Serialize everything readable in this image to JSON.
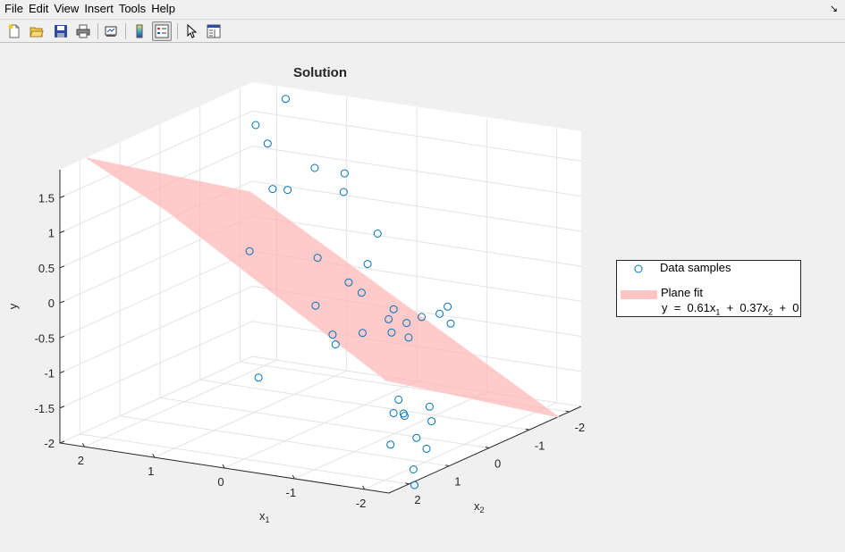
{
  "menu": [
    "File",
    "Edit",
    "View",
    "Insert",
    "Tools",
    "Help"
  ],
  "undock_glyph": "↘",
  "toolbar": {
    "icons": [
      "new-figure-icon",
      "open-file-icon",
      "save-icon",
      "print-icon",
      "link-plot-icon",
      "colorbar-icon",
      "legend-icon",
      "edit-plot-icon",
      "property-inspector-icon"
    ]
  },
  "colors": {
    "samples": "#0072bd",
    "plane": "#ffb3b3",
    "plane_edge": "#ffcccc"
  },
  "chart_data": {
    "type": "scatter",
    "title": "Solution",
    "xlabel": "x",
    "xlabel_sub": "1",
    "zlabel": "x",
    "zlabel_sub": "2",
    "ylabel": "y",
    "x_ticks": [
      "2",
      "1",
      "0",
      "-1",
      "-2"
    ],
    "z_ticks": [
      "-2",
      "-1",
      "0",
      "1",
      "2"
    ],
    "y_ticks": [
      "1.5",
      "1",
      "0.5",
      "0",
      "-0.5",
      "-1",
      "-1.5",
      "-2"
    ],
    "grid": true,
    "legend_position": "right",
    "legend": {
      "samples_label": "Data samples",
      "plane_label": "Plane  fit",
      "eq_prefix": "y  =  0.61x",
      "eq_sub1": "1",
      "eq_mid": "  +  0.37x",
      "eq_sub2": "2",
      "eq_suffix": "  +  0"
    },
    "plane": {
      "coef_x1": 0.61,
      "coef_x2": 0.37,
      "intercept": 0
    },
    "series": [
      {
        "name": "Data samples",
        "points": [
          {
            "x1": 1.9,
            "x2": -1.6,
            "y": 1.55
          },
          {
            "x1": 1.7,
            "x2": -2.0,
            "y": 1.85
          },
          {
            "x1": 1.5,
            "x2": -1.2,
            "y": 1.45
          },
          {
            "x1": 1.3,
            "x2": -0.4,
            "y": 0.15
          },
          {
            "x1": 1.2,
            "x2": -0.8,
            "y": 0.95
          },
          {
            "x1": 1.1,
            "x2": -1.0,
            "y": 0.9
          },
          {
            "x1": 1.0,
            "x2": -1.5,
            "y": 1.1
          },
          {
            "x1": 0.8,
            "x2": -1.9,
            "y": 0.95
          },
          {
            "x1": 0.7,
            "x2": -1.7,
            "y": 0.75
          },
          {
            "x1": 0.5,
            "x2": -0.7,
            "y": 0.1
          },
          {
            "x1": 0.3,
            "x2": -0.3,
            "y": -0.45
          },
          {
            "x1": 0.1,
            "x2": -1.5,
            "y": 0.3
          },
          {
            "x1": 0.2,
            "x2": 1.3,
            "y": -1.05
          },
          {
            "x1": 0.0,
            "x2": -0.6,
            "y": -0.15
          },
          {
            "x1": -0.1,
            "x2": -0.9,
            "y": 0.05
          },
          {
            "x1": -0.3,
            "x2": -0.4,
            "y": -0.2
          },
          {
            "x1": -0.4,
            "x2": 0.5,
            "y": -0.55
          },
          {
            "x1": -0.5,
            "x2": 0.6,
            "y": -0.65
          },
          {
            "x1": -0.6,
            "x2": 0.1,
            "y": -0.6
          },
          {
            "x1": -0.7,
            "x2": -0.5,
            "y": -0.4
          },
          {
            "x1": -0.8,
            "x2": -0.2,
            "y": -0.45
          },
          {
            "x1": -0.9,
            "x2": -0.1,
            "y": -0.6
          },
          {
            "x1": -1.0,
            "x2": -0.3,
            "y": -0.5
          },
          {
            "x1": -1.1,
            "x2": -0.5,
            "y": -0.45
          },
          {
            "x1": -1.2,
            "x2": 0.0,
            "y": -0.6
          },
          {
            "x1": -1.3,
            "x2": -0.6,
            "y": -0.4
          },
          {
            "x1": -1.3,
            "x2": -0.8,
            "y": -0.35
          },
          {
            "x1": -1.4,
            "x2": -0.7,
            "y": -0.55
          },
          {
            "x1": -1.4,
            "x2": 0.6,
            "y": -1.3
          },
          {
            "x1": -1.5,
            "x2": 0.9,
            "y": -1.4
          },
          {
            "x1": -1.6,
            "x2": 0.8,
            "y": -1.45
          },
          {
            "x1": -1.7,
            "x2": 1.0,
            "y": -1.35
          },
          {
            "x1": -1.8,
            "x2": 1.5,
            "y": -1.65
          },
          {
            "x1": -1.9,
            "x2": 0.7,
            "y": -1.3
          },
          {
            "x1": -2.0,
            "x2": 1.2,
            "y": -1.6
          },
          {
            "x1": -2.1,
            "x2": 1.0,
            "y": -1.4
          },
          {
            "x1": -2.2,
            "x2": 1.3,
            "y": -1.7
          },
          {
            "x1": -2.3,
            "x2": 1.8,
            "y": -1.85
          },
          {
            "x1": -2.6,
            "x2": 2.3,
            "y": -1.9
          }
        ]
      }
    ]
  }
}
